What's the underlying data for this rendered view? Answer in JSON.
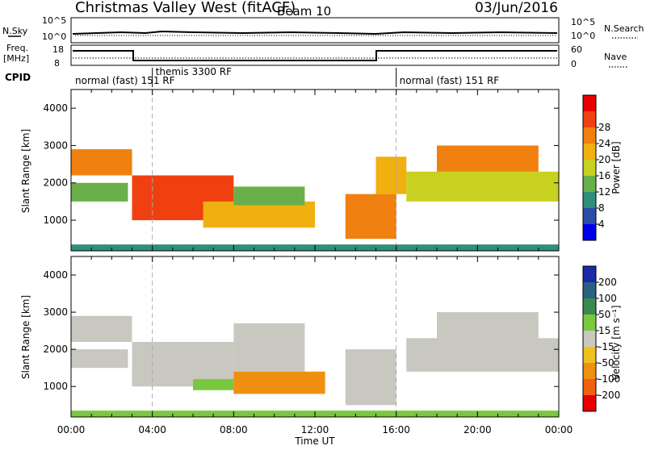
{
  "header": {
    "title": "Christmas Valley West (fitACF)",
    "beam": "Beam 10",
    "date": "03/Jun/2016"
  },
  "strips": {
    "nsky_label": "N.Sky",
    "nsearch_label": "N.Search",
    "noise_ticks": [
      "10^5",
      "10^0"
    ],
    "freq_label_1": "Freq.",
    "freq_label_2": "[MHz]",
    "freq_ticks": [
      "18",
      "8"
    ],
    "nave_ticks": [
      "60",
      "0"
    ],
    "nave_label": "Nave",
    "cpid_label": "CPID",
    "cpid_segments": [
      {
        "label": "normal (fast) 151 RF",
        "start": 0,
        "end": 4
      },
      {
        "label": "themis 3300 RF",
        "start": 4,
        "end": 16
      },
      {
        "label": "normal (fast) 151 RF",
        "start": 16,
        "end": 24
      }
    ]
  },
  "power_colorbar": {
    "label": "Power [dB]",
    "ticks": [
      "4",
      "8",
      "12",
      "16",
      "20",
      "24",
      "28"
    ],
    "colors": [
      "#0000e6",
      "#2a4fa8",
      "#2f8f7a",
      "#6ab04a",
      "#c8d020",
      "#f0b010",
      "#f08010",
      "#f04010",
      "#e80000"
    ]
  },
  "velocity_colorbar": {
    "label": "Velocity [m s⁻¹]",
    "ticks": [
      "200",
      "100",
      "50",
      "15",
      "-15",
      "-50",
      "-100",
      "-200"
    ],
    "colors": [
      "#1a2aa8",
      "#2a6080",
      "#3a8a50",
      "#7ac840",
      "#c8c8c0",
      "#f0c020",
      "#f09010",
      "#f06010",
      "#e80000"
    ]
  },
  "chart_data": [
    {
      "type": "heatmap",
      "name": "power",
      "ylabel": "Slant Range [km]",
      "xlim": [
        0,
        24
      ],
      "ylim": [
        180,
        4500
      ],
      "yticks": [
        "1000",
        "2000",
        "3000",
        "4000"
      ],
      "x_tick_labels": [
        "00:00",
        "04:00",
        "08:00",
        "12:00",
        "16:00",
        "20:00",
        "00:00"
      ],
      "xlabel": "Time UT",
      "regions": [
        {
          "t0": 0.0,
          "t1": 3.0,
          "r0": 2200,
          "r1": 2900,
          "value": 24
        },
        {
          "t0": 0.0,
          "t1": 2.8,
          "r0": 1500,
          "r1": 2000,
          "value": 12
        },
        {
          "t0": 3.0,
          "t1": 8.0,
          "r0": 1000,
          "r1": 2200,
          "value": 29
        },
        {
          "t0": 6.5,
          "t1": 12.0,
          "r0": 800,
          "r1": 1500,
          "value": 22
        },
        {
          "t0": 8.0,
          "t1": 11.5,
          "r0": 1400,
          "r1": 1900,
          "value": 12
        },
        {
          "t0": 13.5,
          "t1": 16.0,
          "r0": 500,
          "r1": 1700,
          "value": 24
        },
        {
          "t0": 15.0,
          "t1": 16.5,
          "r0": 1700,
          "r1": 2700,
          "value": 20
        },
        {
          "t0": 16.5,
          "t1": 24.0,
          "r0": 1500,
          "r1": 2300,
          "value": 18
        },
        {
          "t0": 18.0,
          "t1": 23.0,
          "r0": 2300,
          "r1": 3000,
          "value": 26
        },
        {
          "t0": 0.0,
          "t1": 24.0,
          "r0": 180,
          "r1": 350,
          "value": 8
        }
      ]
    },
    {
      "type": "heatmap",
      "name": "velocity",
      "ylabel": "Slant Range [km]",
      "xlim": [
        0,
        24
      ],
      "ylim": [
        180,
        4500
      ],
      "yticks": [
        "1000",
        "2000",
        "3000",
        "4000"
      ],
      "x_tick_labels": [
        "00:00",
        "04:00",
        "08:00",
        "12:00",
        "16:00",
        "20:00",
        "00:00"
      ],
      "xlabel": "Time UT",
      "regions": [
        {
          "t0": 0.0,
          "t1": 3.0,
          "r0": 2200,
          "r1": 2900,
          "value": 0
        },
        {
          "t0": 0.0,
          "t1": 2.8,
          "r0": 1500,
          "r1": 2000,
          "value": 0
        },
        {
          "t0": 3.0,
          "t1": 8.0,
          "r0": 1000,
          "r1": 2200,
          "value": 0
        },
        {
          "t0": 8.0,
          "t1": 11.5,
          "r0": 1400,
          "r1": 2700,
          "value": 0
        },
        {
          "t0": 8.0,
          "t1": 12.5,
          "r0": 800,
          "r1": 1400,
          "value": -60
        },
        {
          "t0": 6.0,
          "t1": 8.0,
          "r0": 900,
          "r1": 1200,
          "value": 30
        },
        {
          "t0": 13.5,
          "t1": 16.0,
          "r0": 500,
          "r1": 2000,
          "value": 0
        },
        {
          "t0": 16.5,
          "t1": 24.0,
          "r0": 1400,
          "r1": 2300,
          "value": 0
        },
        {
          "t0": 18.0,
          "t1": 23.0,
          "r0": 2300,
          "r1": 3000,
          "value": 0
        },
        {
          "t0": 0.0,
          "t1": 24.0,
          "r0": 180,
          "r1": 350,
          "value": 40
        }
      ]
    }
  ]
}
